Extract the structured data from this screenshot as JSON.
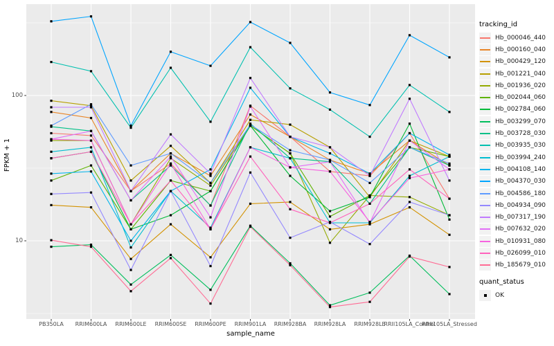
{
  "colors": {
    "panel_bg": "#EBEBEB",
    "grid_major": "#FFFFFF",
    "grid_minor": "#F5F5F5",
    "tick_text": "#4D4D4D",
    "tick_mark": "#333333",
    "point": "#000000",
    "legend_key_bg": "#F2F2F2"
  },
  "axes": {
    "x_title": "sample_name",
    "y_title": "FPKM + 1",
    "y_scale": "log10",
    "y_ticks": [
      {
        "value": 100,
        "label": "100"
      },
      {
        "value": 10,
        "label": "10"
      }
    ],
    "y_minor_breaks": [
      3.162,
      31.62,
      316.2
    ]
  },
  "legend": {
    "tracking_title": "tracking_id",
    "quant_title": "quant_status",
    "quant_items": [
      {
        "label": "OK",
        "marker": "filled-black-square"
      }
    ]
  },
  "chart_data": {
    "type": "line",
    "xlabel": "sample_name",
    "ylabel": "FPKM + 1",
    "y_scale": "log10",
    "ylim": [
      2.8,
      430
    ],
    "grid": true,
    "legend_position": "right",
    "point_marker": "filled-square",
    "point_color": "#000000",
    "categories": [
      "PB350LA",
      "RRIM600LA",
      "RRIM600LE",
      "RRIM600SE",
      "RRIM600PE",
      "RRIM901LA",
      "RRIM928BA",
      "RRIM928LA",
      "RRIM928LE",
      "RRII105LA_Control",
      "RRII105LA_Stressed"
    ],
    "series": [
      {
        "name": "Hb_000046_440",
        "color": "#F8766D",
        "values": [
          55,
          53,
          22,
          34,
          17.5,
          85,
          52,
          30,
          28,
          55,
          19.5
        ]
      },
      {
        "name": "Hb_000160_040",
        "color": "#E88526",
        "values": [
          77,
          70,
          22,
          40,
          28,
          74,
          52,
          36,
          29,
          49,
          33
        ]
      },
      {
        "name": "Hb_000429_120",
        "color": "#D39200",
        "values": [
          17.6,
          17,
          7.5,
          13,
          7.7,
          18,
          18.5,
          12,
          13,
          17,
          11
        ]
      },
      {
        "name": "Hb_001221_040",
        "color": "#B79F00",
        "values": [
          92,
          85,
          26,
          45,
          25,
          68,
          63,
          44,
          20,
          49,
          38
        ]
      },
      {
        "name": "Hb_001936_020",
        "color": "#93AA00",
        "values": [
          49,
          49,
          13,
          37,
          24,
          62,
          40,
          9.7,
          20.5,
          20,
          15
        ]
      },
      {
        "name": "Hb_002044_060",
        "color": "#5EB300",
        "values": [
          26,
          33,
          12,
          26,
          22,
          62,
          40,
          14.7,
          20.5,
          44,
          38
        ]
      },
      {
        "name": "Hb_002784_060",
        "color": "#00BA38",
        "values": [
          37,
          41,
          12,
          15,
          22,
          62,
          28,
          16,
          20,
          64,
          14
        ]
      },
      {
        "name": "Hb_003299_070",
        "color": "#00BE5C",
        "values": [
          9.1,
          9.4,
          5,
          8,
          4.6,
          12.7,
          7,
          3.6,
          4.4,
          7.9,
          4.3
        ]
      },
      {
        "name": "Hb_003728_030",
        "color": "#00C087",
        "values": [
          61,
          57,
          19,
          33,
          17.5,
          64,
          37,
          35,
          18,
          44,
          33
        ]
      },
      {
        "name": "Hb_003935_030",
        "color": "#00C0AF",
        "values": [
          170,
          147,
          60,
          155,
          66,
          215,
          112,
          80,
          52,
          118,
          77
        ]
      },
      {
        "name": "Hb_003994_240",
        "color": "#00BDD0",
        "values": [
          41,
          44,
          9,
          22,
          12.3,
          44,
          37,
          13.3,
          13.3,
          28,
          38
        ]
      },
      {
        "name": "Hb_004108_140",
        "color": "#00B5EC",
        "values": [
          29,
          30,
          10,
          22,
          31,
          113,
          52,
          40,
          29,
          55,
          39
        ]
      },
      {
        "name": "Hb_004370_030",
        "color": "#00A5FF",
        "values": [
          324,
          350,
          62,
          200,
          160,
          320,
          230,
          105,
          86,
          260,
          183
        ]
      },
      {
        "name": "Hb_004586_180",
        "color": "#5E9BFF",
        "values": [
          62,
          87,
          33,
          40,
          25,
          63,
          42,
          36,
          25,
          44,
          34
        ]
      },
      {
        "name": "Hb_004934_090",
        "color": "#9488FF",
        "values": [
          21,
          21.5,
          6.3,
          22,
          6.7,
          29.5,
          10.5,
          13.5,
          9.5,
          18.5,
          15
        ]
      },
      {
        "name": "Hb_007317_190",
        "color": "#C17BFF",
        "values": [
          83,
          83,
          22,
          54,
          29,
          132,
          52,
          44,
          28,
          95,
          26
        ]
      },
      {
        "name": "Hb_007632_020",
        "color": "#E26EF7",
        "values": [
          50,
          57,
          19,
          38,
          14.5,
          84,
          32,
          35,
          13.3,
          49,
          31
        ]
      },
      {
        "name": "Hb_010931_080",
        "color": "#F763E0",
        "values": [
          50,
          49,
          13,
          34,
          12,
          44,
          32,
          30,
          13.5,
          27,
          31
        ]
      },
      {
        "name": "Hb_026099_010",
        "color": "#FF62BC",
        "values": [
          37,
          41,
          13,
          26,
          12,
          38,
          16.5,
          13.3,
          18,
          31,
          19.5
        ]
      },
      {
        "name": "Hb_185679_010",
        "color": "#FF6B94",
        "values": [
          10.1,
          9.1,
          4.5,
          7.6,
          3.7,
          12.5,
          6.8,
          3.5,
          3.8,
          7.8,
          6.6
        ]
      }
    ]
  }
}
